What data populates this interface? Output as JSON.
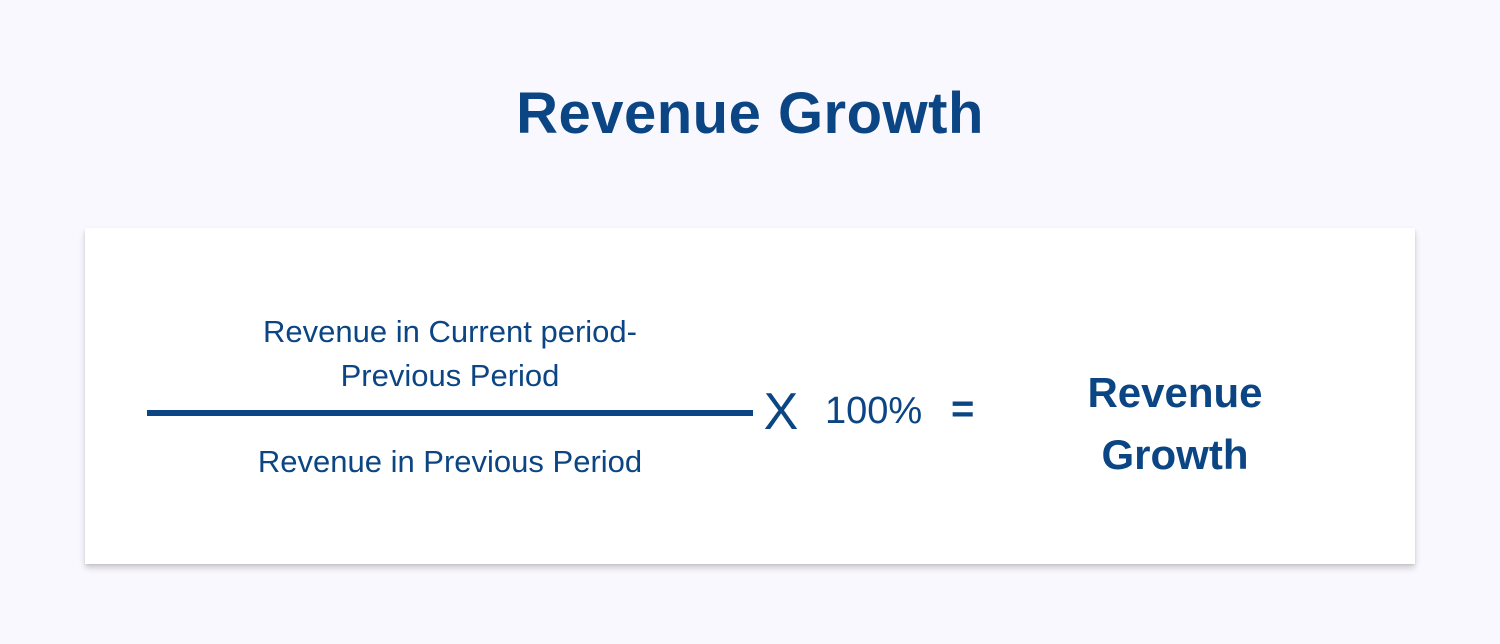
{
  "title": "Revenue Growth",
  "formula": {
    "numerator": {
      "line1": "Revenue in Current period-",
      "line2": "Previous Period"
    },
    "denominator": "Revenue in Previous Period",
    "multiply_symbol": "X",
    "percent": "100%",
    "equals_symbol": "=",
    "result": {
      "line1": "Revenue",
      "line2": "Growth"
    }
  },
  "colors": {
    "background": "#f9f8fe",
    "card": "#ffffff",
    "text": "#0b4583"
  }
}
